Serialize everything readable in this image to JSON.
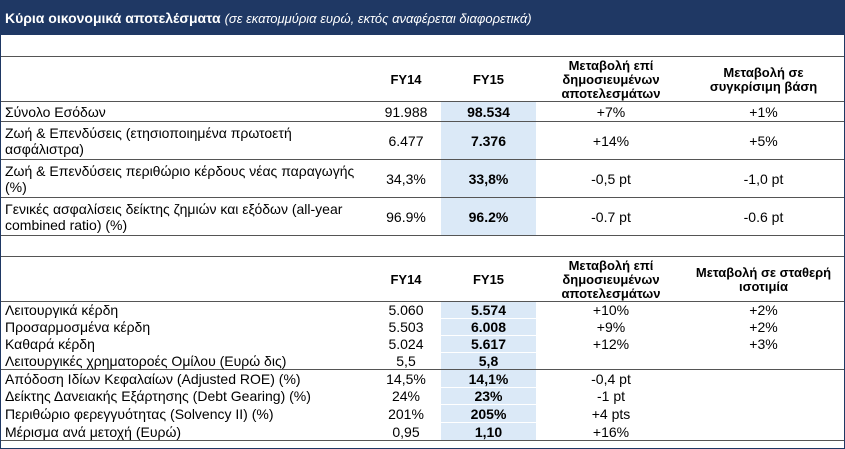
{
  "header": {
    "title": "Κύρια οικονομικά αποτελέσματα",
    "subtitle": "(σε εκατομμύρια ευρώ, εκτός αναφέρεται διαφορετικά)"
  },
  "tables": [
    {
      "columns": [
        "FY14",
        "FY15",
        "Μεταβολή επί δημοσιευμένων αποτελεσμάτων",
        "Μεταβολή σε συγκρίσιμη βάση"
      ],
      "rows": [
        [
          "Σύνολο Εσόδων",
          "91.988",
          "98.534",
          "+7%",
          "+1%"
        ],
        [
          "Ζωή & Επενδύσεις (ετησιοποιημένα πρωτοετή ασφάλιστρα)",
          "6.477",
          "7.376",
          "+14%",
          "+5%"
        ],
        [
          "Ζωή & Επενδύσεις περιθώριο κέρδους νέας παραγωγής (%)",
          "34,3%",
          "33,8%",
          "-0,5 pt",
          "-1,0 pt"
        ],
        [
          "Γενικές ασφαλίσεις δείκτης ζημιών και εξόδων (all-year combined ratio) (%)",
          "96.9%",
          "96.2%",
          "-0.7 pt",
          "-0.6 pt"
        ]
      ]
    },
    {
      "columns": [
        "FY14",
        "FY15",
        "Μεταβολή επί δημοσιευμένων αποτελεσμάτων",
        "Μεταβολή σε σταθερή ισοτιμία"
      ],
      "rows": [
        [
          "Λειτουργικά κέρδη",
          "5.060",
          "5.574",
          "+10%",
          "+2%"
        ],
        [
          "Προσαρμοσμένα κέρδη",
          "5.503",
          "6.008",
          "+9%",
          "+2%"
        ],
        [
          "Καθαρά κέρδη",
          "5.024",
          "5.617",
          "+12%",
          "+3%"
        ],
        [
          "Λειτουργικές χρηματοροές Ομίλου (Ευρώ δις)",
          "5,5",
          "5,8"
        ],
        [
          "Απόδοση Ιδίων Κεφαλαίων (Adjusted ROE) (%)",
          "14,5%",
          "14,1%",
          "-0,4 pt"
        ],
        [
          "Δείκτης Δανειακής Εξάρτησης (Debt Gearing) (%)",
          "24%",
          "23%",
          "-1 pt"
        ],
        [
          "Περιθώριο φερεγγυότητας (Solvency II) (%)",
          "201%",
          "205%",
          "+4 pts"
        ],
        [
          "Μέρισμα ανά μετοχή (Ευρώ)",
          "0,95",
          "1,10",
          "+16%"
        ]
      ]
    }
  ]
}
